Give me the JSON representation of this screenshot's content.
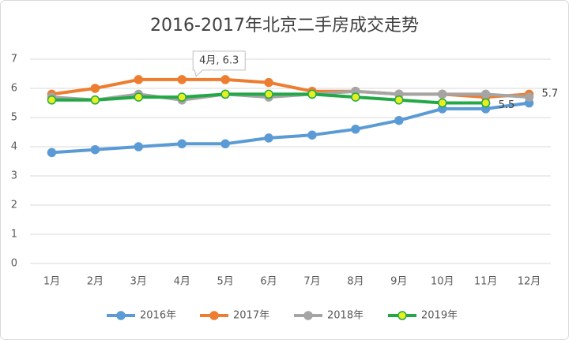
{
  "chart_data": {
    "type": "line",
    "title": "2016-2017年北京二手房成交走势",
    "categories": [
      "1月",
      "2月",
      "3月",
      "4月",
      "5月",
      "6月",
      "7月",
      "8月",
      "9月",
      "10月",
      "11月",
      "12月"
    ],
    "series": [
      {
        "name": "2016年",
        "color": "#5b9bd5",
        "values": [
          3.8,
          3.9,
          4.0,
          4.1,
          4.1,
          4.3,
          4.4,
          4.6,
          4.9,
          5.3,
          5.3,
          5.5
        ]
      },
      {
        "name": "2017年",
        "color": "#ed7d31",
        "values": [
          5.8,
          6.0,
          6.3,
          6.3,
          6.3,
          6.2,
          5.9,
          5.9,
          5.8,
          5.8,
          5.7,
          5.8
        ],
        "value_labels": [
          null,
          null,
          null,
          "4月, 6.3",
          null,
          null,
          null,
          null,
          null,
          null,
          null,
          null
        ]
      },
      {
        "name": "2018年",
        "color": "#a5a5a5",
        "values": [
          5.7,
          5.6,
          5.8,
          5.6,
          5.8,
          5.7,
          5.8,
          5.9,
          5.8,
          5.8,
          5.8,
          5.7
        ],
        "value_labels": [
          null,
          null,
          null,
          null,
          null,
          null,
          null,
          null,
          null,
          null,
          null,
          "5.7"
        ]
      },
      {
        "name": "2019年",
        "color": "#22a846",
        "marker_color": "#e6f01e",
        "values": [
          5.6,
          5.6,
          5.7,
          5.7,
          5.8,
          5.8,
          5.8,
          5.7,
          5.6,
          5.5,
          5.5,
          null
        ],
        "value_labels": [
          null,
          null,
          null,
          null,
          null,
          null,
          null,
          null,
          null,
          null,
          "5.5",
          null
        ]
      }
    ],
    "ylim": [
      0,
      7
    ],
    "yticks": [
      0,
      1,
      2,
      3,
      4,
      5,
      6,
      7
    ],
    "grid": true,
    "legend": "bottom"
  }
}
